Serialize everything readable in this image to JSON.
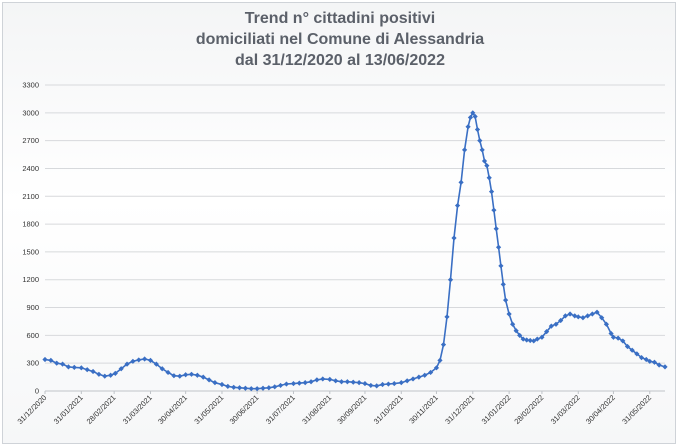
{
  "chart_data": {
    "type": "line",
    "title_lines": [
      "Trend n° cittadini positivi",
      "domiciliati nel Comune di Alessandria",
      "dal 31/12/2020 al 13/06/2022"
    ],
    "x_type": "date",
    "x_range": [
      "2020-12-31",
      "2022-06-13"
    ],
    "ylim": [
      0,
      3300
    ],
    "y_ticks": [
      0,
      300,
      600,
      900,
      1200,
      1500,
      1800,
      2100,
      2400,
      2700,
      3000,
      3300
    ],
    "x_tick_labels": [
      "31/12/2020",
      "31/01/2021",
      "28/02/2021",
      "31/03/2021",
      "30/04/2021",
      "31/05/2021",
      "30/06/2021",
      "31/07/2021",
      "31/08/2021",
      "30/09/2021",
      "31/10/2021",
      "30/11/2021",
      "31/12/2021",
      "31/01/2022",
      "28/02/2022",
      "31/03/2022",
      "30/04/2022",
      "31/05/2022"
    ],
    "x_tick_dates": [
      "2020-12-31",
      "2021-01-31",
      "2021-02-28",
      "2021-03-31",
      "2021-04-30",
      "2021-05-31",
      "2021-06-30",
      "2021-07-31",
      "2021-08-31",
      "2021-09-30",
      "2021-10-31",
      "2021-11-30",
      "2021-12-31",
      "2022-01-31",
      "2022-02-28",
      "2022-03-31",
      "2022-04-30",
      "2022-05-31"
    ],
    "grid": true,
    "legend": "none",
    "series_color": "#3a6fc4",
    "marker": "diamond",
    "series": [
      {
        "x": [
          "2020-12-31",
          "2021-01-05",
          "2021-01-10",
          "2021-01-15",
          "2021-01-20",
          "2021-01-25",
          "2021-01-31",
          "2021-02-05",
          "2021-02-10",
          "2021-02-15",
          "2021-02-20",
          "2021-02-25",
          "2021-03-01",
          "2021-03-06",
          "2021-03-11",
          "2021-03-16",
          "2021-03-21",
          "2021-03-26",
          "2021-03-31",
          "2021-04-05",
          "2021-04-10",
          "2021-04-15",
          "2021-04-20",
          "2021-04-25",
          "2021-04-30",
          "2021-05-05",
          "2021-05-10",
          "2021-05-15",
          "2021-05-20",
          "2021-05-25",
          "2021-05-31",
          "2021-06-05",
          "2021-06-10",
          "2021-06-15",
          "2021-06-20",
          "2021-06-25",
          "2021-06-30",
          "2021-07-05",
          "2021-07-10",
          "2021-07-15",
          "2021-07-20",
          "2021-07-25",
          "2021-07-31",
          "2021-08-05",
          "2021-08-10",
          "2021-08-15",
          "2021-08-20",
          "2021-08-25",
          "2021-08-31",
          "2021-09-05",
          "2021-09-10",
          "2021-09-15",
          "2021-09-20",
          "2021-09-25",
          "2021-09-30",
          "2021-10-05",
          "2021-10-10",
          "2021-10-15",
          "2021-10-20",
          "2021-10-25",
          "2021-10-31",
          "2021-11-05",
          "2021-11-10",
          "2021-11-15",
          "2021-11-20",
          "2021-11-25",
          "2021-11-30",
          "2021-12-03",
          "2021-12-06",
          "2021-12-09",
          "2021-12-12",
          "2021-12-15",
          "2021-12-18",
          "2021-12-21",
          "2021-12-24",
          "2021-12-27",
          "2021-12-29",
          "2021-12-31",
          "2022-01-02",
          "2022-01-04",
          "2022-01-06",
          "2022-01-08",
          "2022-01-10",
          "2022-01-12",
          "2022-01-14",
          "2022-01-16",
          "2022-01-18",
          "2022-01-20",
          "2022-01-22",
          "2022-01-24",
          "2022-01-26",
          "2022-01-28",
          "2022-01-31",
          "2022-02-03",
          "2022-02-06",
          "2022-02-09",
          "2022-02-12",
          "2022-02-15",
          "2022-02-18",
          "2022-02-21",
          "2022-02-24",
          "2022-02-28",
          "2022-03-04",
          "2022-03-08",
          "2022-03-12",
          "2022-03-16",
          "2022-03-20",
          "2022-03-24",
          "2022-03-28",
          "2022-03-31",
          "2022-04-04",
          "2022-04-08",
          "2022-04-12",
          "2022-04-16",
          "2022-04-20",
          "2022-04-24",
          "2022-04-28",
          "2022-04-30",
          "2022-05-04",
          "2022-05-08",
          "2022-05-12",
          "2022-05-16",
          "2022-05-20",
          "2022-05-24",
          "2022-05-28",
          "2022-05-31",
          "2022-06-04",
          "2022-06-08",
          "2022-06-13"
        ],
        "y": [
          340,
          330,
          300,
          290,
          260,
          255,
          250,
          230,
          210,
          180,
          160,
          170,
          190,
          240,
          290,
          320,
          335,
          345,
          330,
          290,
          240,
          200,
          165,
          160,
          175,
          180,
          170,
          150,
          120,
          90,
          70,
          50,
          40,
          35,
          30,
          25,
          25,
          30,
          35,
          45,
          60,
          75,
          80,
          85,
          90,
          100,
          120,
          130,
          125,
          110,
          100,
          100,
          95,
          90,
          80,
          60,
          55,
          70,
          75,
          80,
          90,
          110,
          130,
          150,
          170,
          200,
          250,
          330,
          500,
          800,
          1200,
          1650,
          2000,
          2250,
          2600,
          2850,
          2950,
          3000,
          2960,
          2820,
          2700,
          2600,
          2480,
          2430,
          2300,
          2150,
          1950,
          1750,
          1550,
          1350,
          1150,
          980,
          830,
          720,
          650,
          600,
          560,
          550,
          545,
          540,
          560,
          580,
          640,
          700,
          720,
          760,
          810,
          830,
          810,
          800,
          790,
          810,
          830,
          850,
          790,
          720,
          620,
          580,
          570,
          540,
          480,
          440,
          400,
          360,
          340,
          320,
          310,
          280,
          260
        ]
      }
    ]
  }
}
